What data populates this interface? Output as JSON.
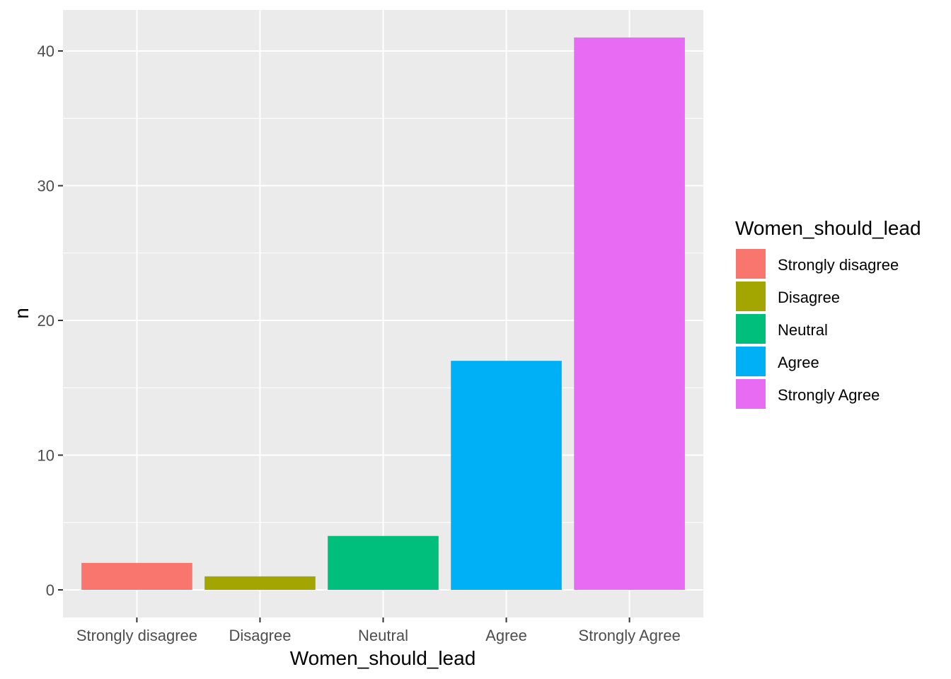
{
  "chart_data": {
    "type": "bar",
    "xlabel": "Women_should_lead",
    "ylabel": "n",
    "categories": [
      "Strongly disagree",
      "Disagree",
      "Neutral",
      "Agree",
      "Strongly Agree"
    ],
    "values": [
      2,
      1,
      4,
      17,
      41
    ],
    "colors": [
      "#F8766D",
      "#A3A500",
      "#00BF7D",
      "#00B0F6",
      "#E76BF3"
    ],
    "ylim": [
      -2.05,
      43.05
    ],
    "yticks": [
      0,
      10,
      20,
      30,
      40
    ],
    "grid": true,
    "panel_background": "#EBEBEB",
    "legend": {
      "title": "Women_should_lead",
      "placement": "right",
      "entries": [
        "Strongly disagree",
        "Disagree",
        "Neutral",
        "Agree",
        "Strongly Agree"
      ]
    }
  }
}
